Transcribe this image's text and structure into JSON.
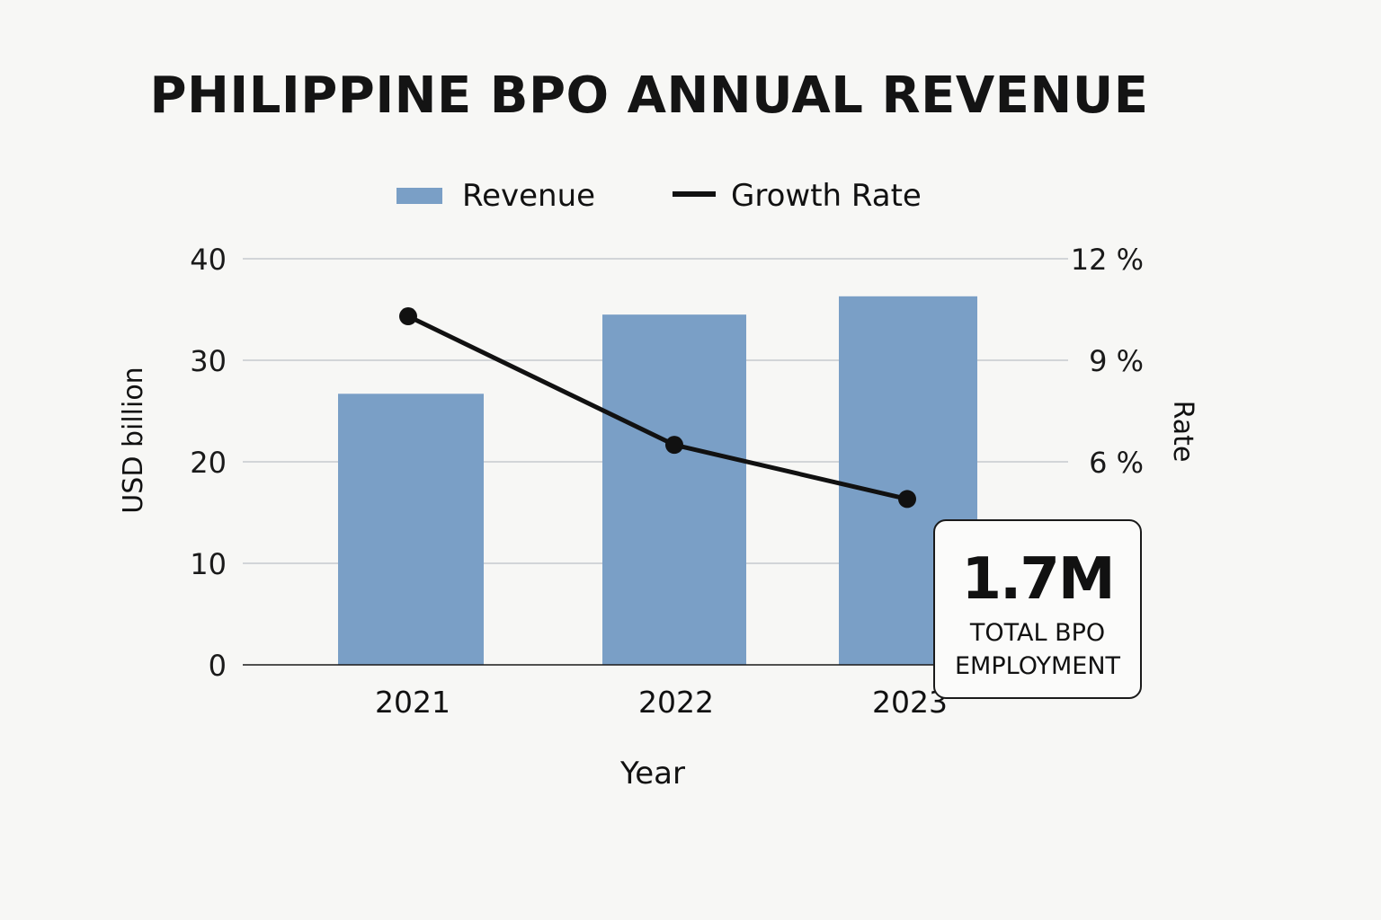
{
  "chart_data": {
    "type": "bar",
    "title": "PHILIPPINE BPO ANNUAL REVENUE",
    "categories": [
      "2021",
      "2022",
      "2023"
    ],
    "xlabel": "Year",
    "ylabel": "USD billion",
    "ylabel_right": "Rate",
    "ylim": [
      0,
      40
    ],
    "yticks": [
      "0",
      "10",
      "20",
      "30",
      "40"
    ],
    "ylim_right": [
      0,
      12
    ],
    "yticks_right": [
      "6 %",
      "9 %",
      "12 %"
    ],
    "yticks_right_values": [
      6,
      9,
      12
    ],
    "grid": true,
    "legend_position": "top-center",
    "series": [
      {
        "name": "Revenue",
        "type": "bar",
        "axis": "left",
        "values": [
          26.7,
          34.5,
          36.3
        ],
        "color": "#7a9fc6"
      },
      {
        "name": "Growth Rate",
        "type": "line",
        "axis": "right",
        "values": [
          10.3,
          6.5,
          4.9
        ],
        "color": "#111111"
      }
    ]
  },
  "callout": {
    "value": "1.7M",
    "label": "TOTAL BPO\nEMPLOYMENT"
  }
}
